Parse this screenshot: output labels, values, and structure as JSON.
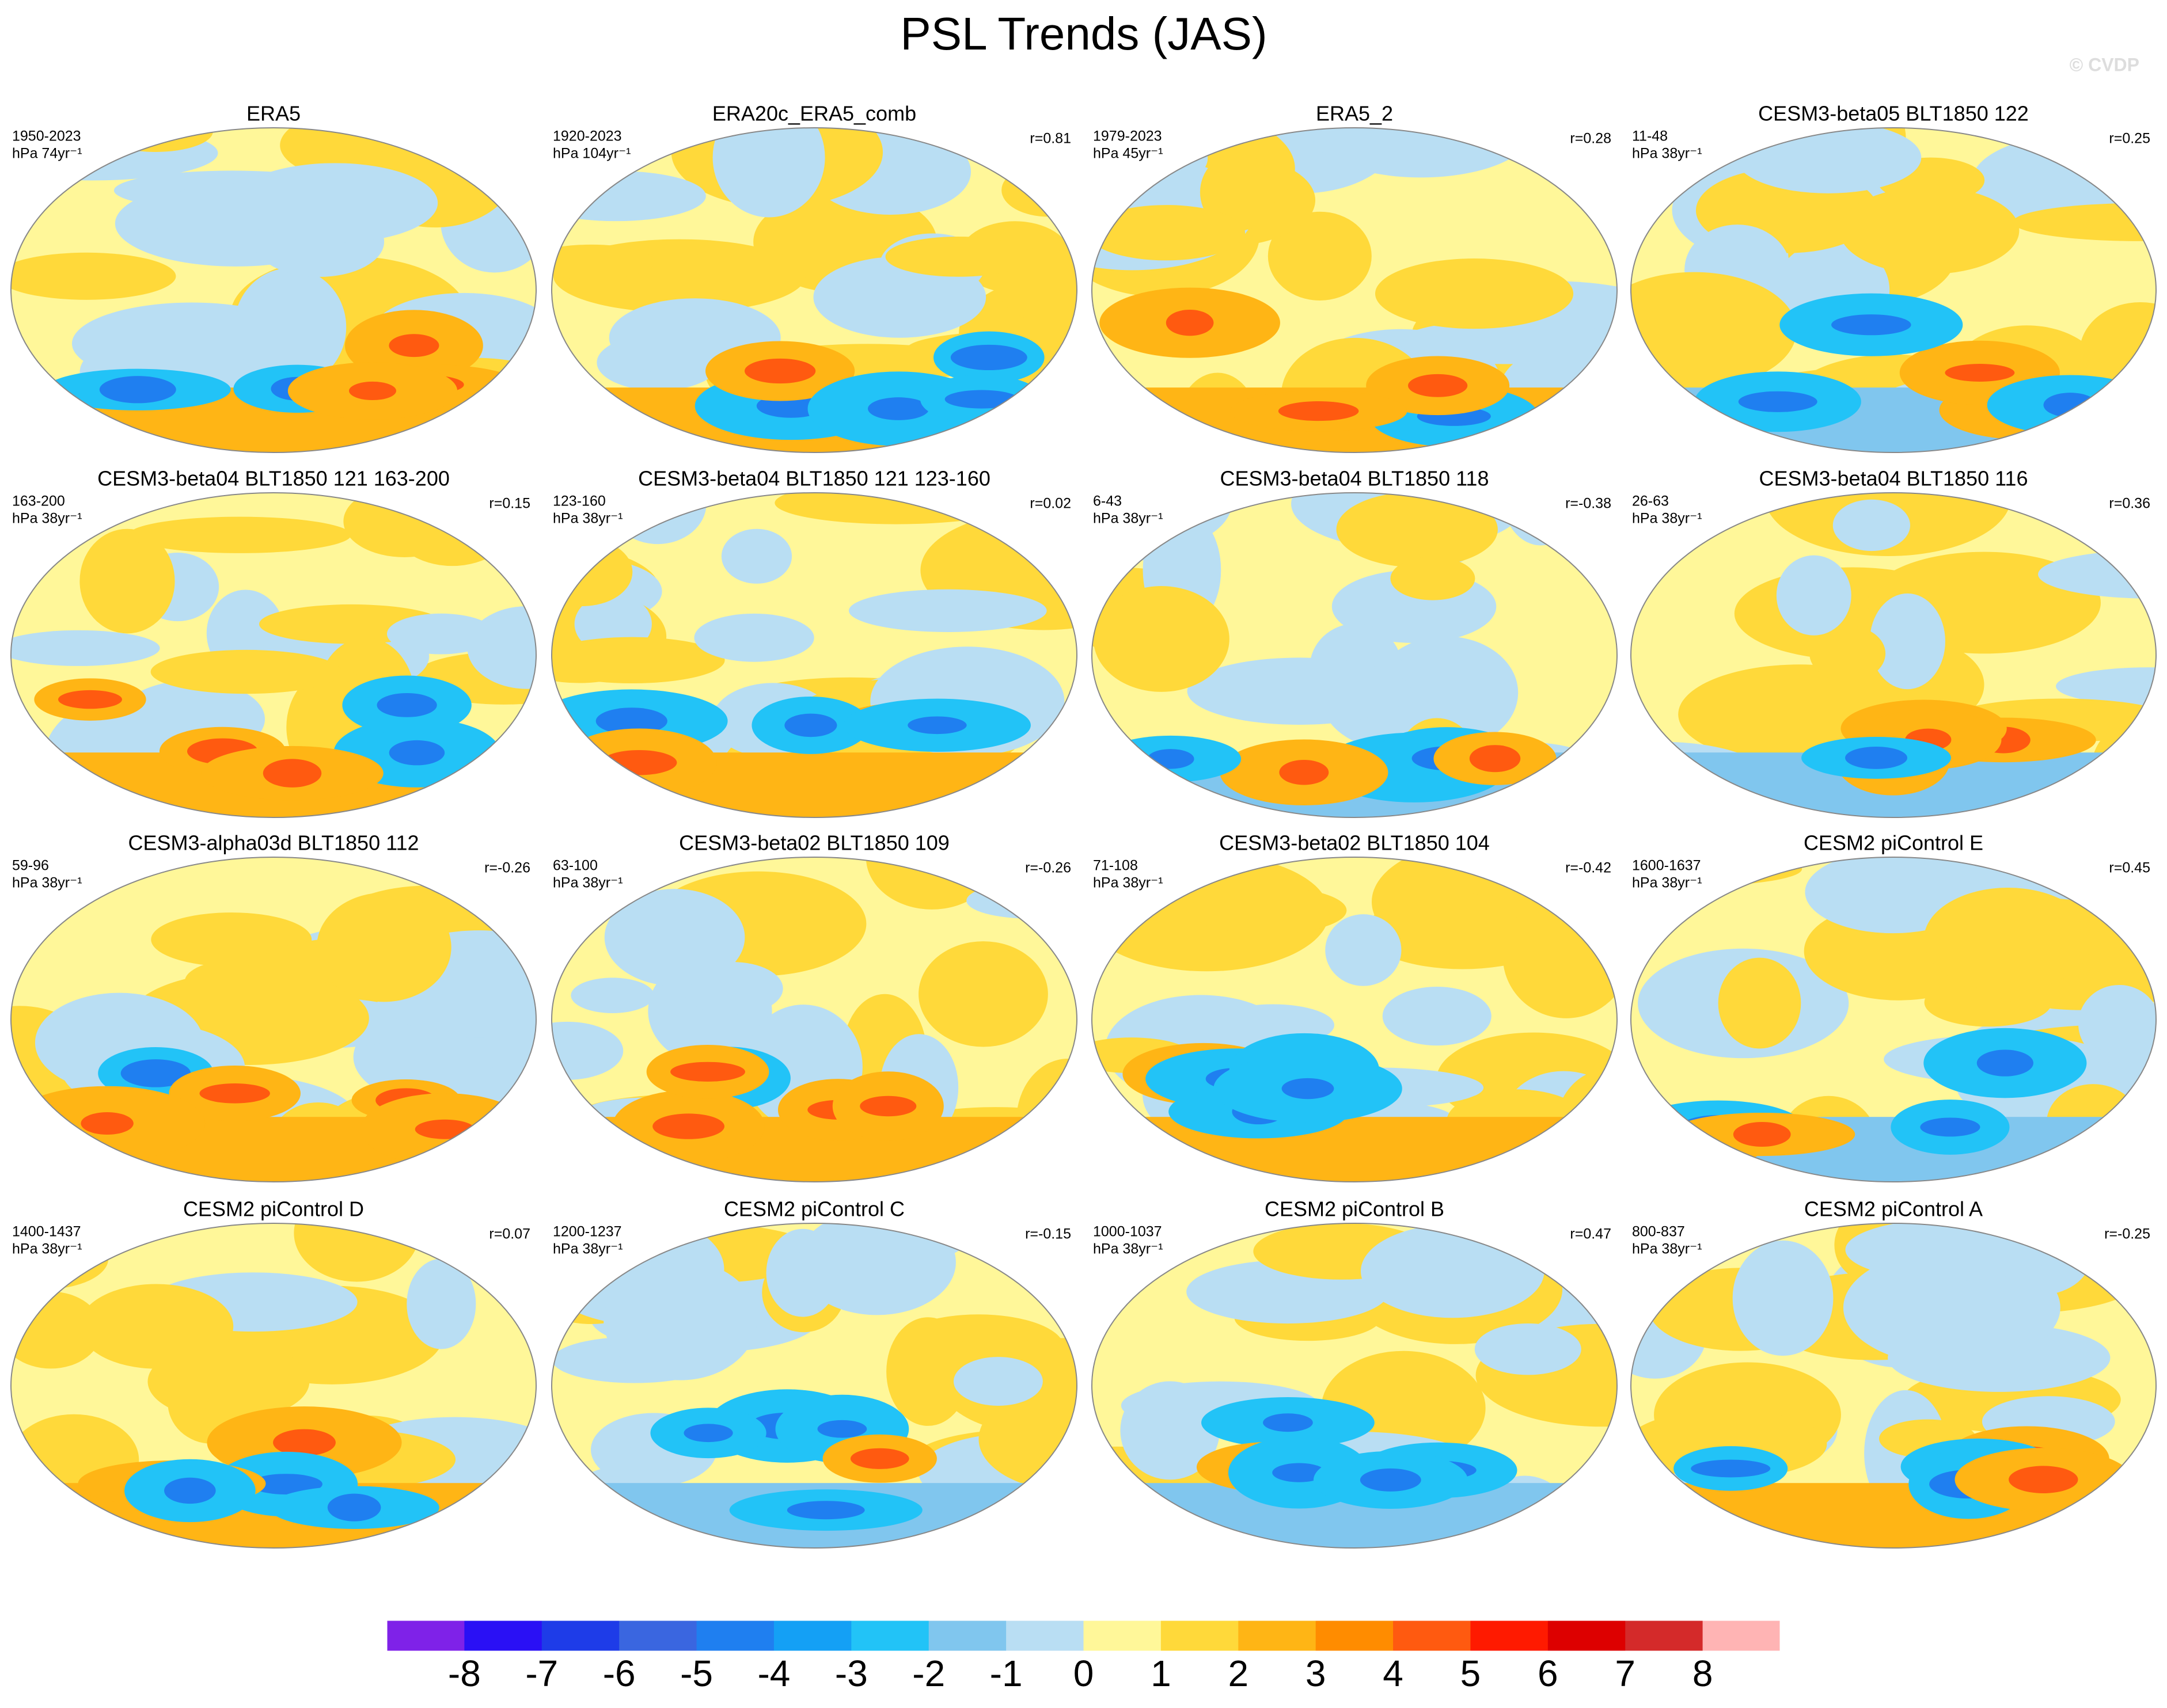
{
  "title": "PSL Trends (JAS)",
  "watermark": "© CVDP",
  "panels": [
    {
      "title": "ERA5",
      "period": "1950-2023",
      "units": "hPa 74yr⁻¹"
    },
    {
      "title": "ERA20c_ERA5_comb",
      "period": "1920-2023",
      "units": "hPa 104yr⁻¹",
      "r": "r=0.81"
    },
    {
      "title": "ERA5_2",
      "period": "1979-2023",
      "units": "hPa 45yr⁻¹",
      "r": "r=0.28"
    },
    {
      "title": "CESM3-beta05 BLT1850 122",
      "period": "11-48",
      "units": "hPa 38yr⁻¹",
      "r": "r=0.25"
    },
    {
      "title": "CESM3-beta04 BLT1850 121 163-200",
      "period": "163-200",
      "units": "hPa 38yr⁻¹",
      "r": "r=0.15"
    },
    {
      "title": "CESM3-beta04 BLT1850 121 123-160",
      "period": "123-160",
      "units": "hPa 38yr⁻¹",
      "r": "r=0.02"
    },
    {
      "title": "CESM3-beta04 BLT1850 118",
      "period": "6-43",
      "units": "hPa 38yr⁻¹",
      "r": "r=-0.38"
    },
    {
      "title": "CESM3-beta04 BLT1850 116",
      "period": "26-63",
      "units": "hPa 38yr⁻¹",
      "r": "r=0.36"
    },
    {
      "title": "CESM3-alpha03d BLT1850 112",
      "period": "59-96",
      "units": "hPa 38yr⁻¹",
      "r": "r=-0.26"
    },
    {
      "title": "CESM3-beta02 BLT1850 109",
      "period": "63-100",
      "units": "hPa 38yr⁻¹",
      "r": "r=-0.26"
    },
    {
      "title": "CESM3-beta02 BLT1850 104",
      "period": "71-108",
      "units": "hPa 38yr⁻¹",
      "r": "r=-0.42"
    },
    {
      "title": "CESM2 piControl E",
      "period": "1600-1637",
      "units": "hPa 38yr⁻¹",
      "r": "r=0.45"
    },
    {
      "title": "CESM2 piControl D",
      "period": "1400-1437",
      "units": "hPa 38yr⁻¹",
      "r": "r=0.07"
    },
    {
      "title": "CESM2 piControl C",
      "period": "1200-1237",
      "units": "hPa 38yr⁻¹",
      "r": "r=-0.15"
    },
    {
      "title": "CESM2 piControl B",
      "period": "1000-1037",
      "units": "hPa 38yr⁻¹",
      "r": "r=0.47"
    },
    {
      "title": "CESM2 piControl A",
      "period": "800-837",
      "units": "hPa 38yr⁻¹",
      "r": "r=-0.25"
    }
  ],
  "colorbar": {
    "colors": [
      "#7f22e8",
      "#2a10f5",
      "#1e3ce8",
      "#3a66e0",
      "#1f7ff0",
      "#14a0f5",
      "#22c3f7",
      "#80c6ee",
      "#b9def3",
      "#fff799",
      "#ffd93a",
      "#ffb515",
      "#ff8c00",
      "#ff5a10",
      "#ff1a00",
      "#dd0000",
      "#d42a2a",
      "#ffb4b4"
    ],
    "ticks": [
      -8,
      -7,
      -6,
      -5,
      -4,
      -3,
      -2,
      -1,
      0,
      1,
      2,
      3,
      4,
      5,
      6,
      7,
      8
    ]
  }
}
